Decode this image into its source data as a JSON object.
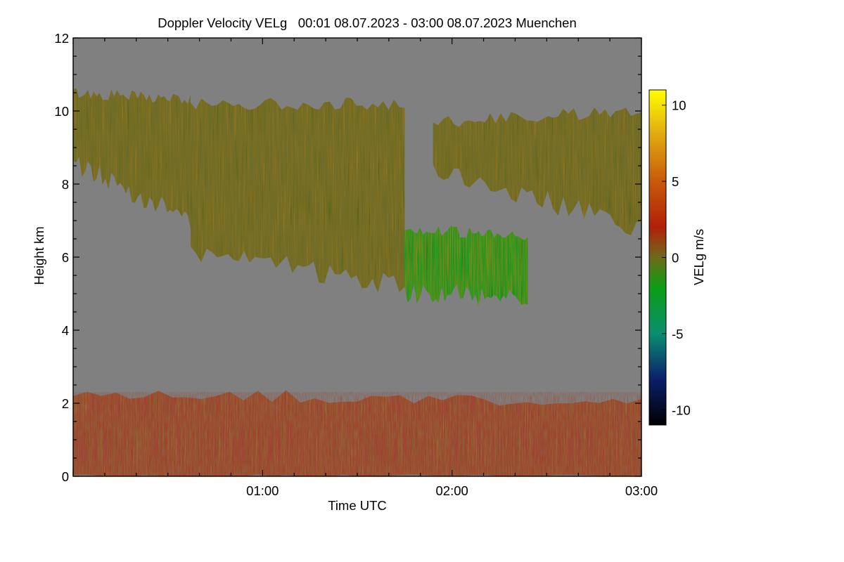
{
  "chart_data": {
    "type": "heatmap",
    "title": "Doppler Velocity VELg   00:01 08.07.2023 - 03:00 08.07.2023 Muenchen",
    "xlabel": "Time UTC",
    "ylabel": "Height km",
    "x_range_hours": [
      0.0,
      3.0
    ],
    "xlim": [
      "00:00",
      "03:00"
    ],
    "x_ticks": [
      "01:00",
      "02:00",
      "03:00"
    ],
    "ylim": [
      0,
      12
    ],
    "y_ticks": [
      "0",
      "2",
      "4",
      "6",
      "8",
      "10",
      "12"
    ],
    "background_color": "#808080",
    "colorbar": {
      "label": "VELg m/s",
      "range": [
        -11,
        11
      ],
      "ticks": [
        "10",
        "5",
        "0",
        "-5",
        "-10"
      ],
      "colors": [
        {
          "value": -11,
          "color": "#000000"
        },
        {
          "value": -8,
          "color": "#0a1f6a"
        },
        {
          "value": -5,
          "color": "#0a8f70"
        },
        {
          "value": -2,
          "color": "#0a9e14"
        },
        {
          "value": 0,
          "color": "#6e6a1a"
        },
        {
          "value": 2,
          "color": "#b0200a"
        },
        {
          "value": 5,
          "color": "#c85a0a"
        },
        {
          "value": 8,
          "color": "#e0a810"
        },
        {
          "value": 11,
          "color": "#ffff00"
        }
      ]
    },
    "echo_regions": [
      {
        "name": "upper cloud layer (west)",
        "time_h": [
          0.0,
          0.62
        ],
        "top_km": [
          10.5,
          10.3
        ],
        "base_km": [
          8.6,
          7.0
        ],
        "velocity_ms": -1
      },
      {
        "name": "upper cloud layer (central)",
        "time_h": [
          0.62,
          1.75
        ],
        "top_km": [
          10.2,
          10.2
        ],
        "base_km": [
          6.2,
          5.2
        ],
        "velocity_ms": -1.5
      },
      {
        "name": "upper cloud layer (east)",
        "time_h": [
          1.9,
          3.0
        ],
        "top_km": [
          9.7,
          10.0
        ],
        "base_km": [
          8.4,
          6.8
        ],
        "velocity_ms": -1.5
      },
      {
        "name": "mid-level fall streaks",
        "time_h": [
          1.75,
          2.4
        ],
        "top_km": [
          6.8,
          6.5
        ],
        "base_km": [
          5.0,
          4.9
        ],
        "velocity_ms": -2
      },
      {
        "name": "boundary layer",
        "time_h": [
          0.0,
          3.0
        ],
        "top_km": [
          2.3,
          2.0
        ],
        "base_km": [
          0.0,
          0.0
        ],
        "velocity_ms": 1
      }
    ]
  }
}
